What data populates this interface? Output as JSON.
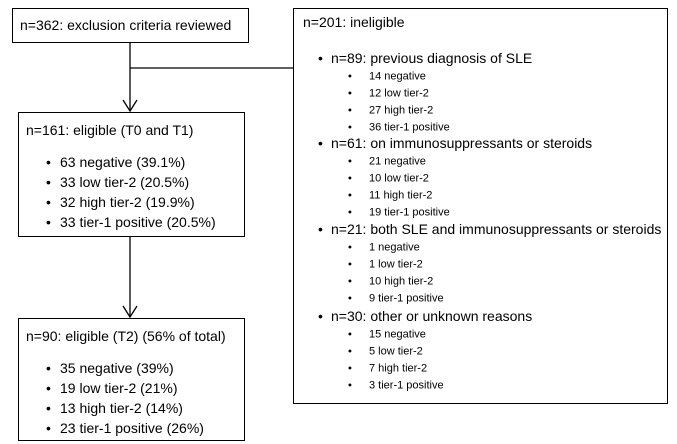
{
  "boxes": {
    "screened": {
      "label": "n=362: exclusion criteria reviewed"
    },
    "eligible_t0_t1": {
      "label": "n=161: eligible (T0 and T1)",
      "items": [
        "63 negative (39.1%)",
        "33 low tier-2 (20.5%)",
        "32 high tier-2 (19.9%)",
        "33 tier-1 positive (20.5%)"
      ]
    },
    "eligible_t2": {
      "label": "n=90: eligible (T2) (56% of total)",
      "items": [
        "35 negative (39%)",
        "19 low tier-2 (21%)",
        "13 high tier-2 (14%)",
        "23 tier-1 positive (26%)"
      ]
    },
    "ineligible": {
      "label": "n=201: ineligible",
      "groups": [
        {
          "label": "n=89: previous diagnosis of SLE",
          "items": [
            "14 negative",
            "12 low tier-2",
            "27 high tier-2",
            "36 tier-1 positive"
          ]
        },
        {
          "label": "n=61: on immunosuppressants or steroids",
          "items": [
            "21 negative",
            "10 low tier-2",
            "11 high tier-2",
            "19 tier-1 positive"
          ]
        },
        {
          "label": "n=21: both SLE and immunosuppressants or steroids",
          "items": [
            "1 negative",
            "1 low tier-2",
            "10 high tier-2",
            "9 tier-1 positive"
          ]
        },
        {
          "label": "n=30: other or unknown reasons",
          "items": [
            "15 negative",
            "5 low tier-2",
            "7 high tier-2",
            "3 tier-1 positive"
          ]
        }
      ]
    }
  }
}
